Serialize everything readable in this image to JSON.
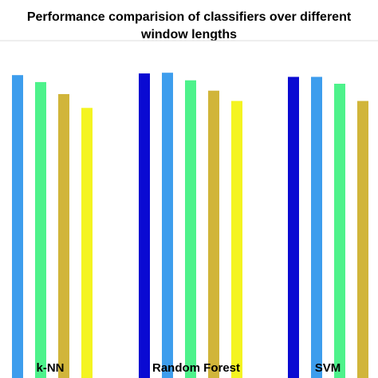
{
  "chart_data": {
    "type": "bar",
    "title_lines": [
      "Performance comparision of classifiers over different",
      "window lengths"
    ],
    "categories": [
      "k-NN",
      "Random Forest",
      "SVM"
    ],
    "series": [
      {
        "color": "#0a0ad2",
        "values": [
          null,
          90.5,
          89.5
        ]
      },
      {
        "color": "#3d9ded",
        "values": [
          90.0,
          90.7,
          89.5
        ]
      },
      {
        "color": "#4df28b",
        "values": [
          88.0,
          88.5,
          87.5
        ]
      },
      {
        "color": "#d1b53a",
        "values": [
          84.5,
          85.5,
          82.5
        ]
      },
      {
        "color": "#f4f421",
        "values": [
          80.5,
          82.5,
          null
        ]
      }
    ],
    "ylim": [
      10,
      100
    ],
    "xlabel": "",
    "ylabel": "",
    "legend": false,
    "grid": false
  }
}
